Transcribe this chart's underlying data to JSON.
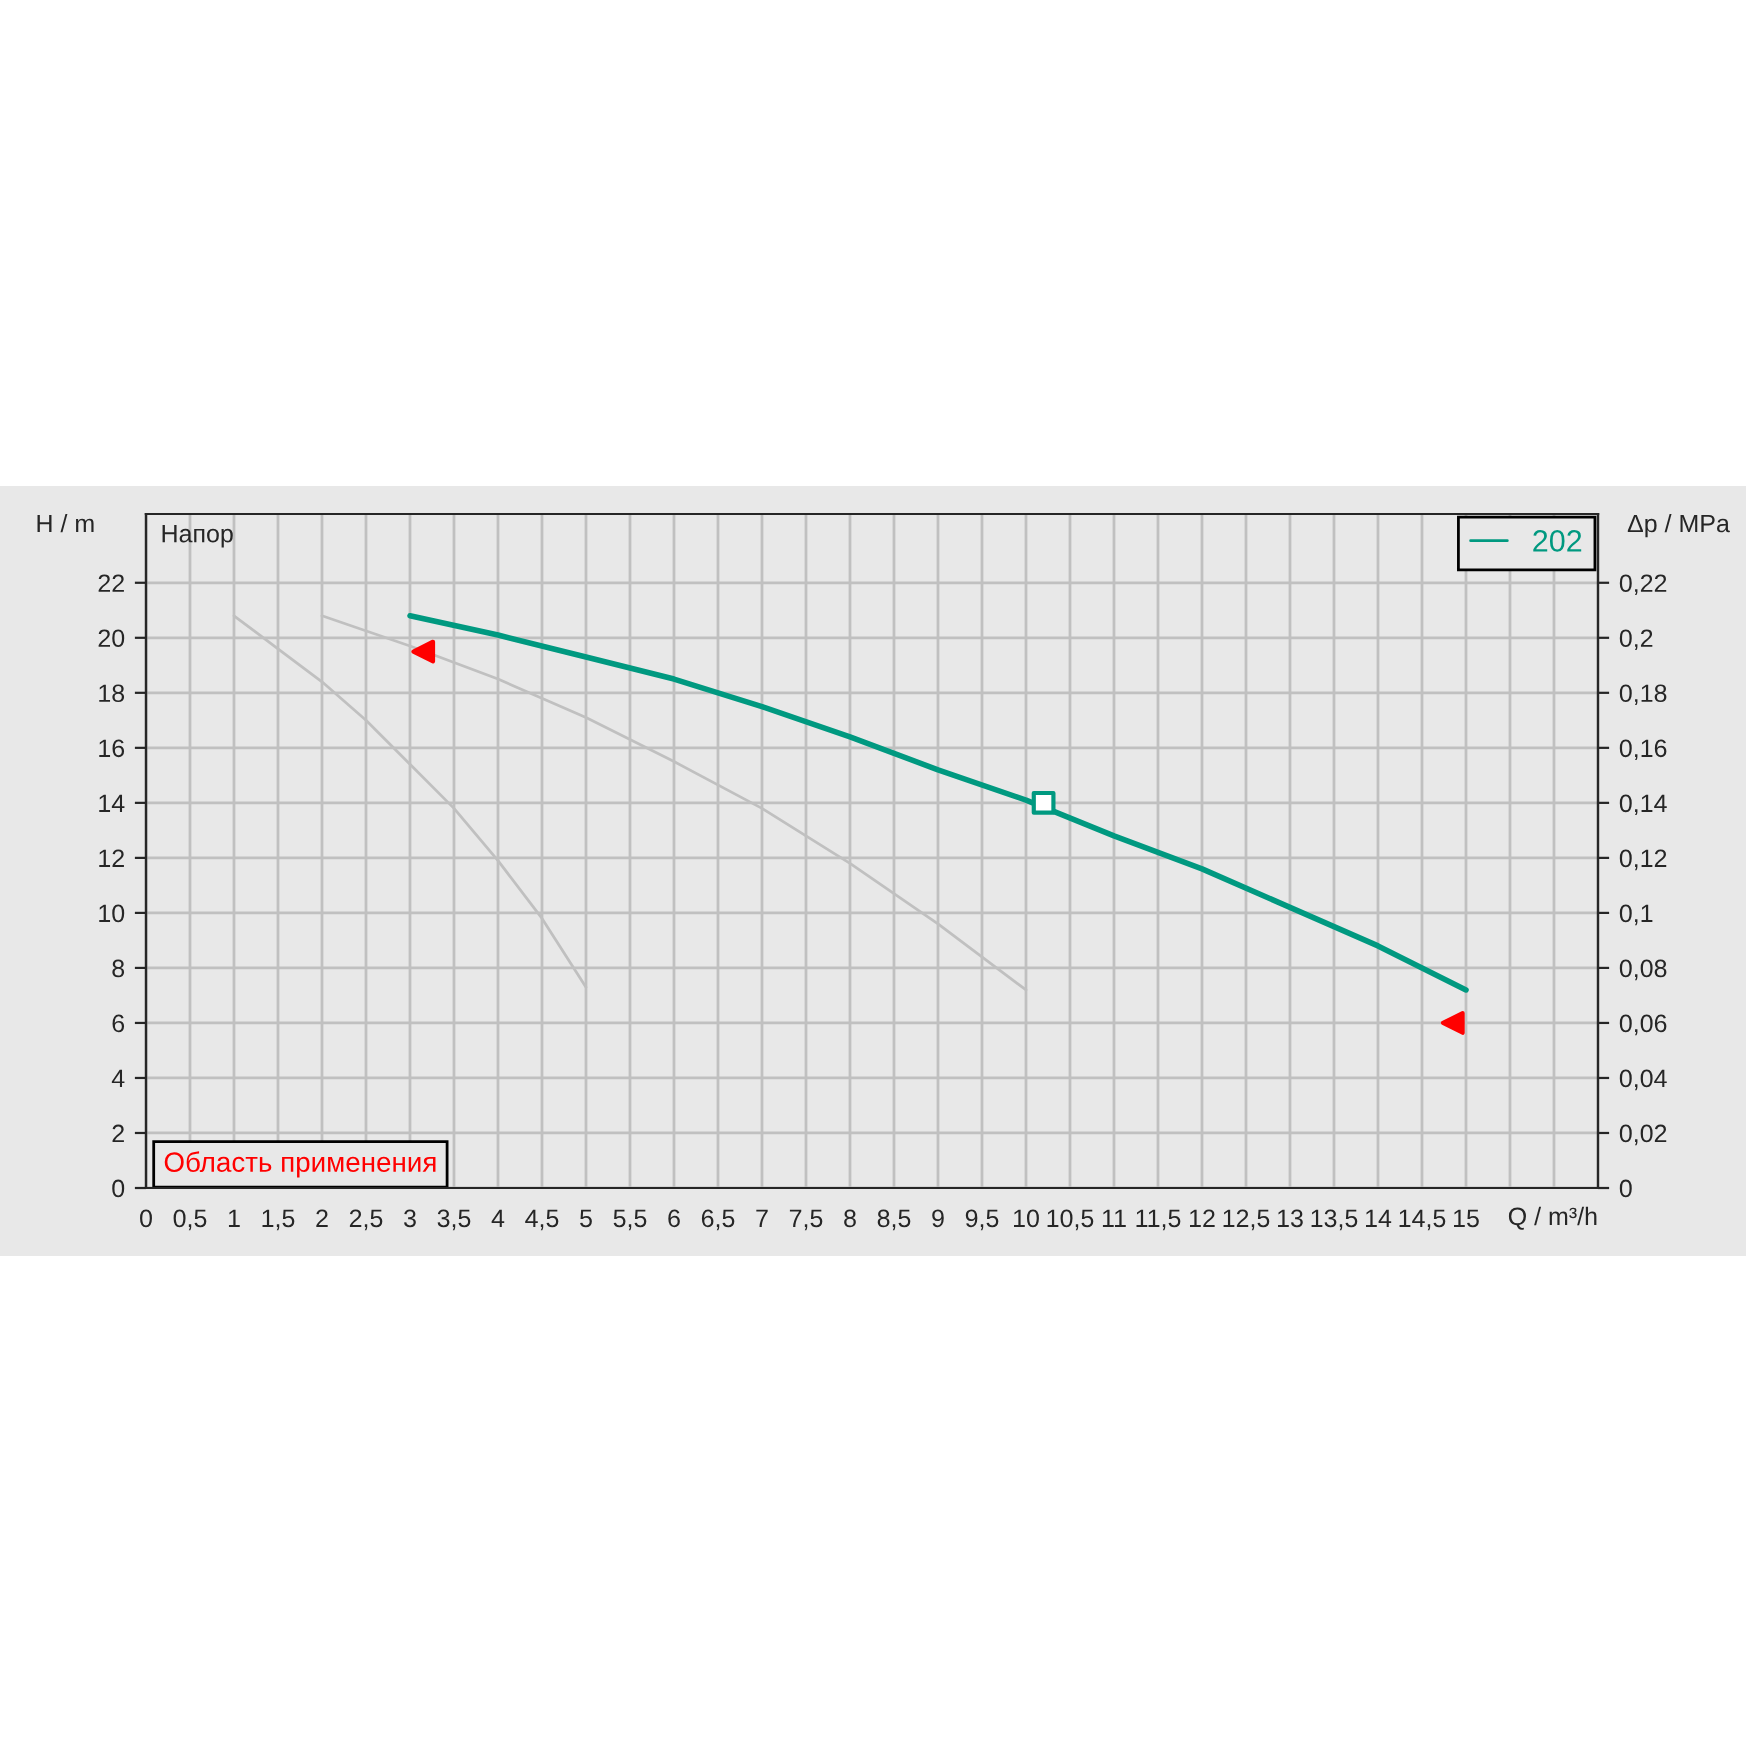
{
  "chart_data": {
    "type": "line",
    "xlabel": "Q / m³/h",
    "ylabel": "H / m",
    "y2label": "Δp / MPa",
    "annotations": [
      "Напор",
      "Область применения"
    ],
    "xlim": [
      0,
      16.5
    ],
    "ylim": [
      0,
      24.5
    ],
    "y2lim": [
      0,
      0.245
    ],
    "xticks": [
      0,
      {
        "value": 0.5,
        "label": "0,5"
      },
      1,
      {
        "value": 1.5,
        "label": "1,5"
      },
      2,
      {
        "value": 2.5,
        "label": "2,5"
      },
      3,
      {
        "value": 3.5,
        "label": "3,5"
      },
      4,
      {
        "value": 4.5,
        "label": "4,5"
      },
      5,
      {
        "value": 5.5,
        "label": "5,5"
      },
      6,
      {
        "value": 6.5,
        "label": "6,5"
      },
      7,
      {
        "value": 7.5,
        "label": "7,5"
      },
      8,
      {
        "value": 8.5,
        "label": "8,5"
      },
      9,
      {
        "value": 9.5,
        "label": "9,5"
      },
      10,
      {
        "value": 10.5,
        "label": "10,5"
      },
      11,
      {
        "value": 11.5,
        "label": "11,5"
      },
      12,
      {
        "value": 12.5,
        "label": "12,5"
      },
      13,
      {
        "value": 13.5,
        "label": "13,5"
      },
      14,
      {
        "value": 14.5,
        "label": "14,5"
      },
      15,
      {
        "value": 15.5,
        "label": null
      },
      {
        "value": 16,
        "label": null
      }
    ],
    "yticks": [
      0,
      2,
      4,
      6,
      8,
      10,
      12,
      14,
      16,
      18,
      20,
      22
    ],
    "y2ticks": [
      0,
      {
        "value": 0.02,
        "label": "0,02"
      },
      {
        "value": 0.04,
        "label": "0,04"
      },
      {
        "value": 0.06,
        "label": "0,06"
      },
      {
        "value": 0.08,
        "label": "0,08"
      },
      {
        "value": 0.1,
        "label": "0,1"
      },
      {
        "value": 0.12,
        "label": "0,12"
      },
      {
        "value": 0.14,
        "label": "0,14"
      },
      {
        "value": 0.16,
        "label": "0,16"
      },
      {
        "value": 0.18,
        "label": "0,18"
      },
      {
        "value": 0.2,
        "label": "0,2"
      },
      {
        "value": 0.22,
        "label": "0,22"
      }
    ],
    "grid": true,
    "legend": "top right",
    "series": [
      {
        "name": "202",
        "color": "#009980",
        "x": [
          3,
          4,
          5,
          6,
          7,
          8,
          9,
          10,
          11,
          12,
          13,
          14,
          15
        ],
        "values": [
          20.8,
          20.1,
          19.3,
          18.5,
          17.5,
          16.4,
          15.2,
          14.1,
          12.8,
          11.6,
          10.2,
          8.8,
          7.2
        ]
      },
      {
        "color": "#c0c0c0",
        "x": [
          1,
          1.5,
          2,
          2.5,
          3,
          3.5,
          4,
          4.5,
          5
        ],
        "values": [
          20.8,
          19.6,
          18.4,
          17.0,
          15.4,
          13.8,
          11.9,
          9.8,
          7.3
        ]
      },
      {
        "color": "#c0c0c0",
        "x": [
          2,
          3,
          4,
          5,
          6,
          7,
          8,
          9,
          10
        ],
        "values": [
          20.8,
          19.7,
          18.5,
          17.1,
          15.5,
          13.8,
          11.8,
          9.6,
          7.2
        ]
      },
      {
        "type": "scatter",
        "marker": "square",
        "color": "#009980",
        "x": [
          10.2
        ],
        "values": [
          14.0
        ]
      },
      {
        "type": "scatter",
        "marker": "triangle",
        "color": "#ff0000",
        "x": [
          3.15,
          14.85
        ],
        "values": [
          19.5,
          6.0
        ]
      }
    ]
  }
}
